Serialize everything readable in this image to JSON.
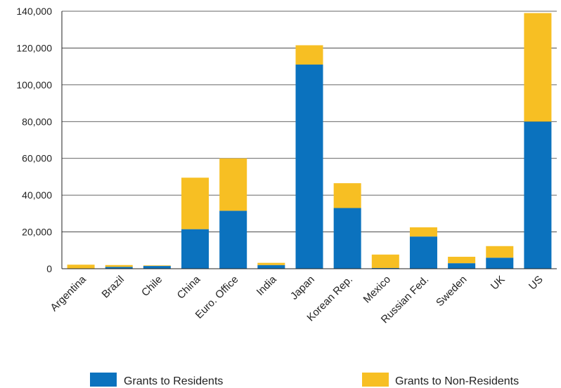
{
  "chart_data": {
    "type": "bar",
    "stacked": true,
    "categories": [
      "Argentina",
      "Brazil",
      "Chile",
      "China",
      "Euro. Office",
      "India",
      "Japan",
      "Korean Rep.",
      "Mexico",
      "Russian Fed.",
      "Sweden",
      "UK",
      "US"
    ],
    "series": [
      {
        "name": "Grants to Residents",
        "color": "#0b72be",
        "values": [
          200,
          1000,
          1500,
          21500,
          31500,
          2000,
          111000,
          33000,
          400,
          17500,
          3000,
          6000,
          80000
        ]
      },
      {
        "name": "Grants to Non-Residents",
        "color": "#f7bf23",
        "values": [
          2000,
          1000,
          300,
          28000,
          28500,
          1200,
          10500,
          13500,
          7300,
          5000,
          3500,
          6300,
          59000
        ]
      }
    ],
    "yticks": [
      "0",
      "20,000",
      "40,000",
      "60,000",
      "80,000",
      "100,000",
      "120,000",
      "140,000"
    ],
    "ylim": [
      0,
      140000
    ],
    "grid": true,
    "legend_position": "bottom"
  }
}
